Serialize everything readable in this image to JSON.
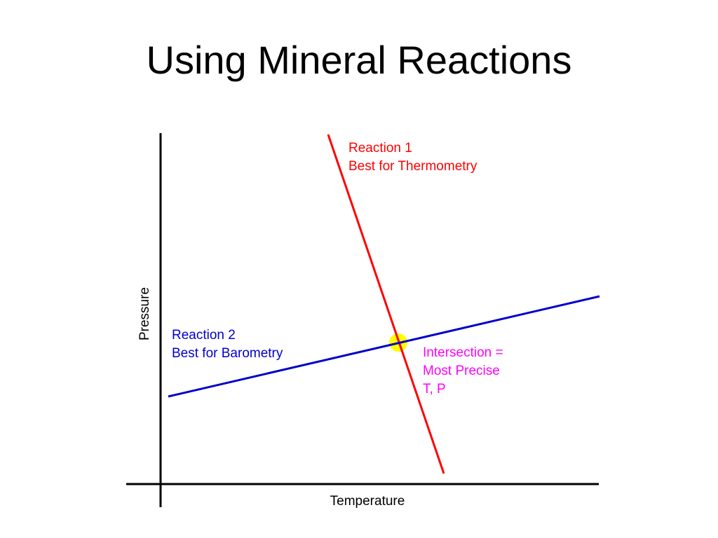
{
  "slide": {
    "title": "Using Mineral Reactions"
  },
  "diagram": {
    "axes": {
      "x_label": "Temperature",
      "y_label": "Pressure",
      "color": "#000000"
    },
    "reaction1": {
      "line1": "Reaction 1",
      "line2": "Best for Thermometry",
      "color": "#ff0000"
    },
    "reaction2": {
      "line1": "Reaction 2",
      "line2": "Best for Barometry",
      "color": "#0000cc"
    },
    "intersection": {
      "line1": "Intersection =",
      "line2": "Most Precise",
      "line3": "T, P",
      "label_color": "#ff00ff",
      "marker_color": "#ffff00"
    }
  }
}
